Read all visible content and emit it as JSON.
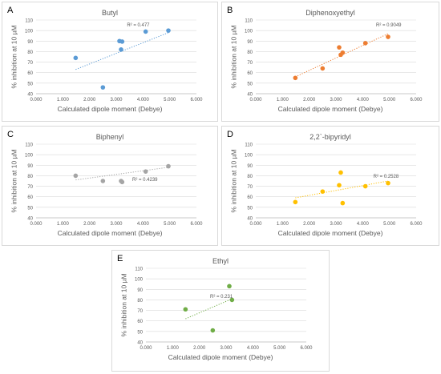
{
  "chart_data": [
    {
      "id": "A",
      "type": "scatter",
      "panel_letter": "A",
      "title": "Butyl",
      "xlabel": "Calculated dipole moment (Debye)",
      "ylabel": "% inhibition at 10 µM",
      "x_ticks": [
        "0.000",
        "1.000",
        "2.000",
        "3.000",
        "4.000",
        "5.000",
        "6.000"
      ],
      "y_ticks": [
        "40",
        "50",
        "60",
        "70",
        "80",
        "90",
        "100",
        "110"
      ],
      "xlim": [
        0,
        6
      ],
      "ylim": [
        40,
        110
      ],
      "color": "#5b9bd5",
      "points": [
        [
          1.48,
          74
        ],
        [
          2.5,
          46
        ],
        [
          3.12,
          90
        ],
        [
          3.18,
          82
        ],
        [
          3.22,
          89.5
        ],
        [
          4.1,
          99
        ],
        [
          4.95,
          100
        ]
      ],
      "trendline": {
        "x": [
          1.48,
          4.95
        ],
        "y": [
          63,
          98
        ],
        "style": "dotted"
      },
      "r2_label": "R² = 0.477"
    },
    {
      "id": "B",
      "type": "scatter",
      "panel_letter": "B",
      "title": "Diphenoxyethyl",
      "xlabel": "Calculated dipole moment (Debye)",
      "ylabel": "% inhibition at 10 µM",
      "x_ticks": [
        "0.000",
        "1.000",
        "2.000",
        "3.000",
        "4.000",
        "5.000",
        "6.000"
      ],
      "y_ticks": [
        "40",
        "50",
        "60",
        "70",
        "80",
        "90",
        "100",
        "110"
      ],
      "xlim": [
        0,
        6
      ],
      "ylim": [
        40,
        110
      ],
      "color": "#ed7d31",
      "points": [
        [
          1.48,
          55
        ],
        [
          2.5,
          64
        ],
        [
          3.12,
          84
        ],
        [
          3.18,
          77
        ],
        [
          3.25,
          79
        ],
        [
          4.1,
          88
        ],
        [
          4.95,
          94
        ]
      ],
      "trendline": {
        "x": [
          1.48,
          4.95
        ],
        "y": [
          56,
          97
        ],
        "style": "dotted"
      },
      "r2_label": "R² = 0.9049"
    },
    {
      "id": "C",
      "type": "scatter",
      "panel_letter": "C",
      "title": "Biphenyl",
      "xlabel": "Calculated dipole moment (Debye)",
      "ylabel": "% inhibition at 10 µM",
      "x_ticks": [
        "0.000",
        "1.000",
        "2.000",
        "3.000",
        "4.000",
        "5.000",
        "6.000"
      ],
      "y_ticks": [
        "40",
        "50",
        "60",
        "70",
        "80",
        "90",
        "100",
        "110"
      ],
      "xlim": [
        0,
        6
      ],
      "ylim": [
        40,
        110
      ],
      "color": "#a5a5a5",
      "points": [
        [
          1.48,
          80
        ],
        [
          2.5,
          75
        ],
        [
          3.18,
          75
        ],
        [
          3.22,
          74
        ],
        [
          4.1,
          84
        ],
        [
          4.95,
          89
        ]
      ],
      "trendline": {
        "x": [
          1.48,
          4.95
        ],
        "y": [
          76,
          88
        ],
        "style": "dotted"
      },
      "r2_label": "R² = 0.4239"
    },
    {
      "id": "D",
      "type": "scatter",
      "panel_letter": "D",
      "title": "2,2`-bipyridyl",
      "xlabel": "Calculated dipole moment (Debye)",
      "ylabel": "% inhibition at 10 µM",
      "x_ticks": [
        "0.000",
        "1.000",
        "2.000",
        "3.000",
        "4.000",
        "5.000",
        "6.000"
      ],
      "y_ticks": [
        "40",
        "50",
        "60",
        "70",
        "80",
        "90",
        "100",
        "110"
      ],
      "xlim": [
        0,
        6
      ],
      "ylim": [
        40,
        110
      ],
      "color": "#ffc000",
      "points": [
        [
          1.48,
          55
        ],
        [
          2.5,
          65
        ],
        [
          3.12,
          71
        ],
        [
          3.18,
          83
        ],
        [
          3.25,
          54
        ],
        [
          4.1,
          70
        ],
        [
          4.95,
          73
        ]
      ],
      "trendline": {
        "x": [
          1.48,
          4.95
        ],
        "y": [
          59,
          75
        ],
        "style": "dotted"
      },
      "r2_label": "R² = 0.2528"
    },
    {
      "id": "E",
      "type": "scatter",
      "panel_letter": "E",
      "title": "Ethyl",
      "xlabel": "Calculated dipole moment (Debye)",
      "ylabel": "% inhibition at 10 µM",
      "x_ticks": [
        "0.000",
        "1.000",
        "2.000",
        "3.000",
        "4.000",
        "5.000",
        "6.000"
      ],
      "y_ticks": [
        "40",
        "50",
        "60",
        "70",
        "80",
        "90",
        "100",
        "110"
      ],
      "xlim": [
        0,
        6
      ],
      "ylim": [
        40,
        110
      ],
      "color": "#70ad47",
      "points": [
        [
          1.48,
          71
        ],
        [
          2.5,
          51
        ],
        [
          3.12,
          93
        ],
        [
          3.22,
          80
        ]
      ],
      "trendline": {
        "x": [
          1.48,
          3.22
        ],
        "y": [
          62,
          81
        ],
        "style": "dotted"
      },
      "r2_label": "R² = 0.231"
    }
  ]
}
